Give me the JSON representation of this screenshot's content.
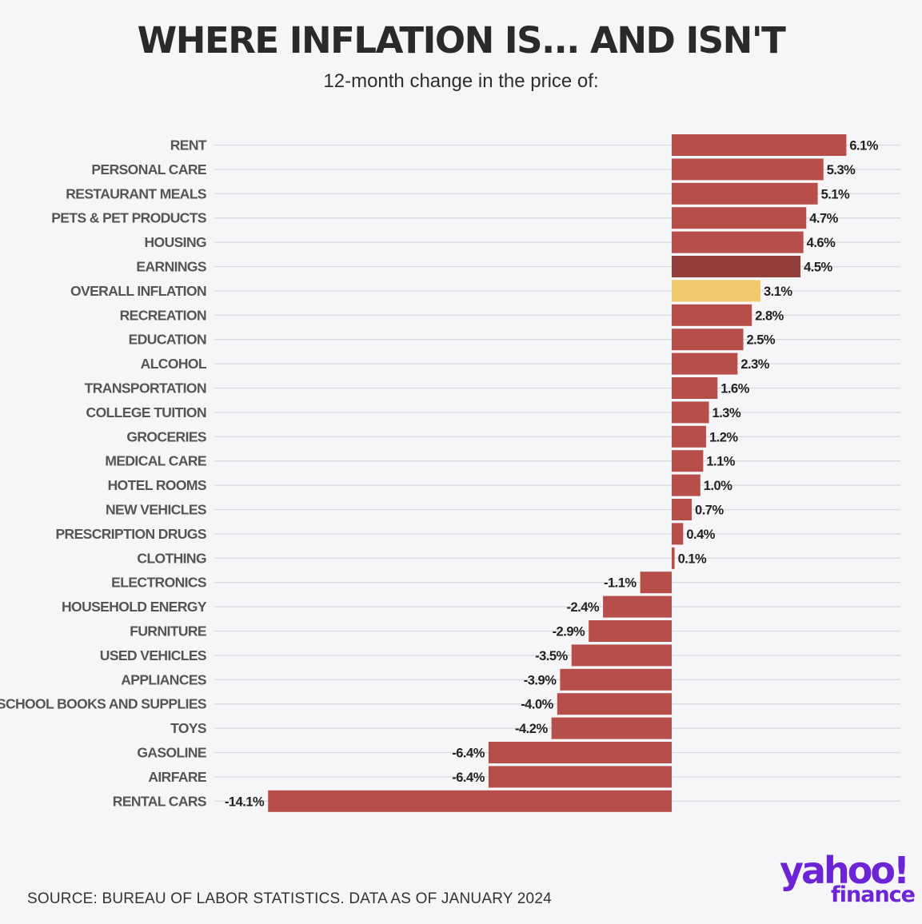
{
  "header": {
    "title": "WHERE INFLATION IS... AND ISN'T",
    "subtitle": "12-month change in the price of:"
  },
  "colors": {
    "bar": "#b84e4a",
    "bar_earnings": "#93403c",
    "bar_overall": "#f0c96a",
    "grid": "#d9d9de",
    "brand": "#6d23d6"
  },
  "chart_data": {
    "type": "bar",
    "orientation": "horizontal",
    "title": "WHERE INFLATION IS... AND ISN'T",
    "subtitle": "12-month change in the price of:",
    "xlabel": "",
    "ylabel": "",
    "grid": true,
    "xlim": [
      -14.1,
      6.1
    ],
    "categories": [
      "RENT",
      "PERSONAL CARE",
      "RESTAURANT MEALS",
      "PETS & PET PRODUCTS",
      "HOUSING",
      "EARNINGS",
      "OVERALL INFLATION",
      "RECREATION",
      "EDUCATION",
      "ALCOHOL",
      "TRANSPORTATION",
      "COLLEGE TUITION",
      "GROCERIES",
      "MEDICAL CARE",
      "HOTEL ROOMS",
      "NEW VEHICLES",
      "PRESCRIPTION DRUGS",
      "CLOTHING",
      "ELECTRONICS",
      "HOUSEHOLD ENERGY",
      "FURNITURE",
      "USED VEHICLES",
      "APPLIANCES",
      "SCHOOL BOOKS AND SUPPLIES",
      "TOYS",
      "GASOLINE",
      "AIRFARE",
      "RENTAL CARS"
    ],
    "values": [
      6.1,
      5.3,
      5.1,
      4.7,
      4.6,
      4.5,
      3.1,
      2.8,
      2.5,
      2.3,
      1.6,
      1.3,
      1.2,
      1.1,
      1.0,
      0.7,
      0.4,
      0.1,
      -1.1,
      -2.4,
      -2.9,
      -3.5,
      -3.9,
      -4.0,
      -4.2,
      -6.4,
      -6.4,
      -14.1
    ],
    "value_labels": [
      "6.1%",
      "5.3%",
      "5.1%",
      "4.7%",
      "4.6%",
      "4.5%",
      "3.1%",
      "2.8%",
      "2.5%",
      "2.3%",
      "1.6%",
      "1.3%",
      "1.2%",
      "1.1%",
      "1.0%",
      "0.7%",
      "0.4%",
      "0.1%",
      "-1.1%",
      "-2.4%",
      "-2.9%",
      "-3.5%",
      "-3.9%",
      "-4.0%",
      "-4.2%",
      "-6.4%",
      "-6.4%",
      "-14.1%"
    ],
    "highlight": {
      "EARNINGS": "#93403c",
      "OVERALL INFLATION": "#f0c96a"
    }
  },
  "footer": {
    "source": "SOURCE: BUREAU OF LABOR STATISTICS. DATA AS OF JANUARY 2024",
    "logo_yahoo": "yahoo!",
    "logo_finance": "finance"
  }
}
